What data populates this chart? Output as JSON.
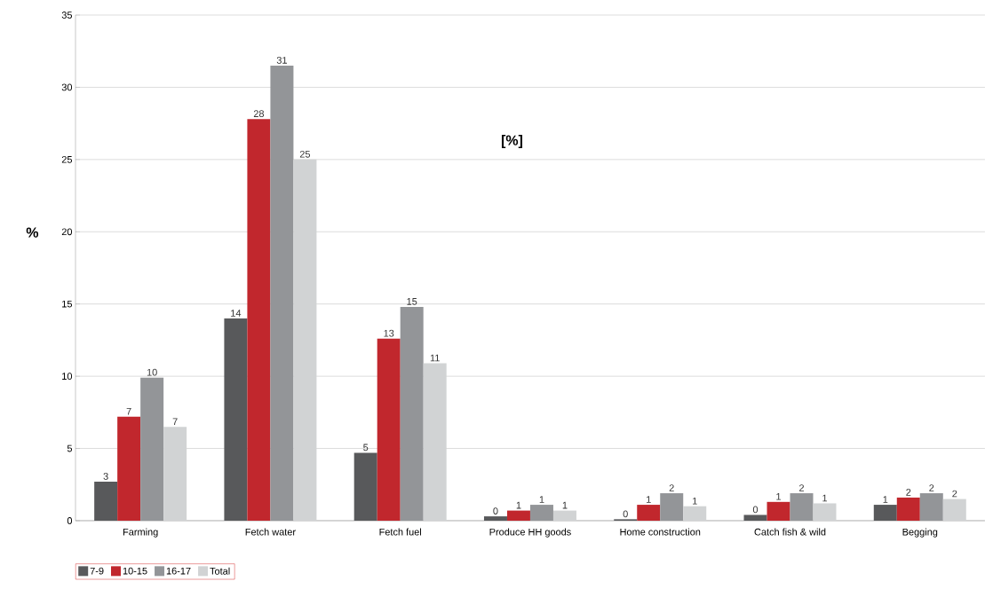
{
  "chart_data": {
    "type": "bar",
    "ylabel": "%",
    "annotations": [
      "[%]"
    ],
    "categories": [
      "Farming",
      "Fetch water",
      "Fetch fuel",
      "Produce HH goods",
      "Home construction",
      "Catch fish & wild",
      "Begging"
    ],
    "series": [
      {
        "name": "7-9",
        "color": "#58595b",
        "values": [
          2.7,
          14.0,
          4.7,
          0.3,
          0.1,
          0.4,
          1.1
        ],
        "value_labels": [
          "3",
          "14",
          "5",
          "0",
          "0",
          "0",
          "1"
        ]
      },
      {
        "name": "10-15",
        "color": "#c1272d",
        "values": [
          7.2,
          27.8,
          12.6,
          0.7,
          1.1,
          1.3,
          1.6
        ],
        "value_labels": [
          "7",
          "28",
          "13",
          "1",
          "1",
          "1",
          "2"
        ]
      },
      {
        "name": "16-17",
        "color": "#939598",
        "values": [
          9.9,
          31.5,
          14.8,
          1.1,
          1.9,
          1.9,
          1.9
        ],
        "value_labels": [
          "10",
          "31",
          "15",
          "1",
          "2",
          "2",
          "2"
        ]
      },
      {
        "name": "Total",
        "color": "#d1d3d4",
        "values": [
          6.5,
          25.0,
          10.9,
          0.7,
          1.0,
          1.2,
          1.5
        ],
        "value_labels": [
          "7",
          "25",
          "11",
          "1",
          "1",
          "1",
          "2"
        ]
      }
    ],
    "ylim": [
      0,
      35
    ],
    "yticks": [
      0,
      5,
      10,
      15,
      20,
      25,
      30,
      35
    ],
    "grid": "y",
    "legend": "bottom left"
  }
}
